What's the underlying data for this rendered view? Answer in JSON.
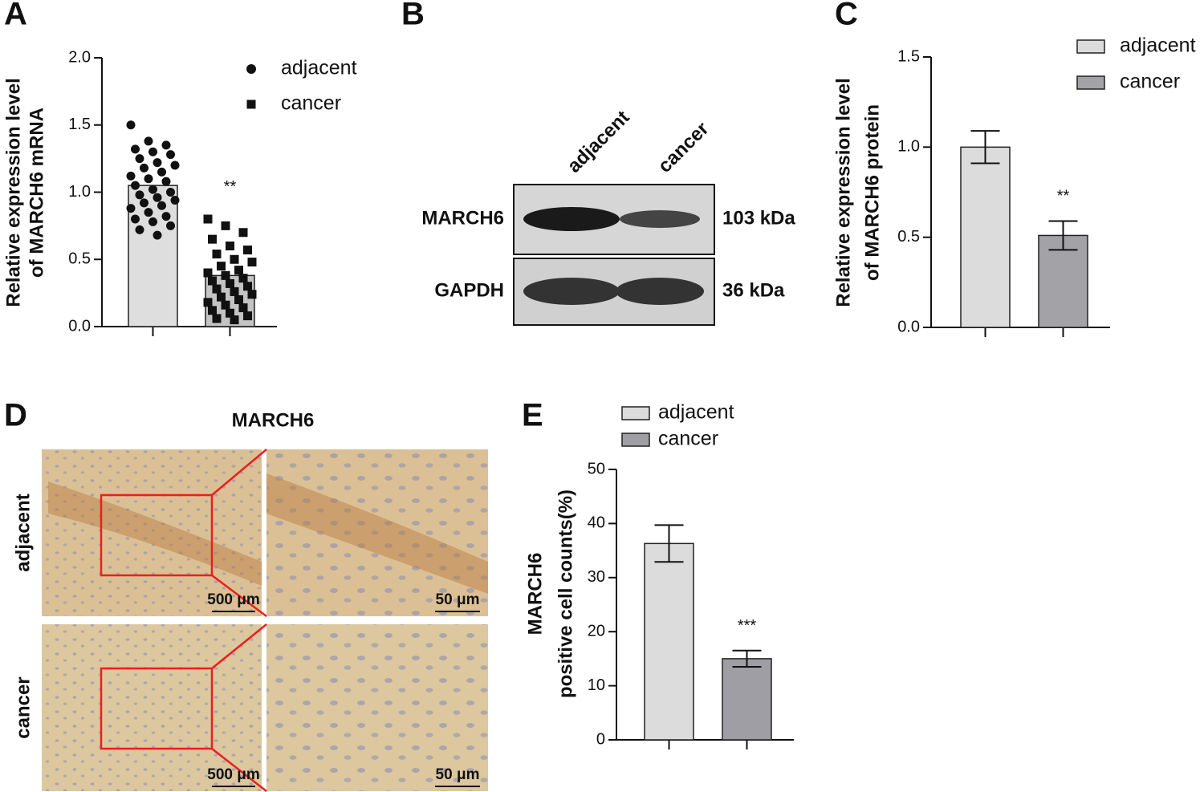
{
  "chart_data": [
    {
      "type": "bar",
      "panel": "A",
      "ylabel": [
        "Relative expression level",
        "of MARCH6 mRNA"
      ],
      "categories": [
        "adjacent",
        "cancer"
      ],
      "values": [
        1.05,
        0.38
      ],
      "colors": [
        "#dedede",
        "#c4c4c4"
      ],
      "legend_style": "symbol",
      "points": [
        [
          1.5,
          1.38,
          1.35,
          1.32,
          1.3,
          1.28,
          1.25,
          1.22,
          1.2,
          1.18,
          1.15,
          1.12,
          1.1,
          1.08,
          1.05,
          1.02,
          1.0,
          0.98,
          0.96,
          0.94,
          0.92,
          0.9,
          0.88,
          0.85,
          0.82,
          0.8,
          0.78,
          0.75,
          0.72,
          0.68
        ],
        [
          0.8,
          0.75,
          0.7,
          0.65,
          0.6,
          0.57,
          0.54,
          0.5,
          0.48,
          0.45,
          0.42,
          0.4,
          0.38,
          0.36,
          0.34,
          0.32,
          0.3,
          0.28,
          0.26,
          0.24,
          0.22,
          0.2,
          0.18,
          0.16,
          0.14,
          0.12,
          0.1,
          0.08,
          0.06,
          0.05
        ]
      ],
      "annotations": [
        {
          "category": 1,
          "text": "**"
        }
      ],
      "ylim": [
        0,
        2
      ],
      "yticks": [
        {
          "value": 0,
          "label": "0.0"
        },
        {
          "value": 0.5,
          "label": "0.5"
        },
        {
          "value": 1,
          "label": "1.0"
        },
        {
          "value": 1.5,
          "label": "1.5"
        },
        {
          "value": 2,
          "label": "2.0"
        }
      ]
    },
    {
      "type": "bar",
      "panel": "C",
      "ylabel": [
        "Relative expression level",
        "of MARCH6 protein"
      ],
      "categories": [
        "adjacent",
        "cancer"
      ],
      "values": [
        1.0,
        0.51
      ],
      "errors": [
        0.09,
        0.08
      ],
      "colors": [
        "#dcdcdc",
        "#a2a2a7"
      ],
      "legend_style": "swatch",
      "annotations": [
        {
          "category": 1,
          "text": "**"
        }
      ],
      "ylim": [
        0,
        1.5
      ],
      "yticks": [
        {
          "value": 0,
          "label": "0.0"
        },
        {
          "value": 0.5,
          "label": "0.5"
        },
        {
          "value": 1,
          "label": "1.0"
        },
        {
          "value": 1.5,
          "label": "1.5"
        }
      ]
    },
    {
      "type": "bar",
      "panel": "E",
      "ylabel": [
        "MARCH6",
        "positive cell counts(%)"
      ],
      "categories": [
        "adjacent",
        "cancer"
      ],
      "values": [
        36.3,
        15.0
      ],
      "errors": [
        3.4,
        1.5
      ],
      "colors": [
        "#dcdcdc",
        "#9e9ea4"
      ],
      "legend_style": "swatch",
      "annotations": [
        {
          "category": 1,
          "text": "***"
        }
      ],
      "ylim": [
        0,
        50
      ],
      "yticks": [
        0,
        10,
        20,
        30,
        40,
        50
      ]
    }
  ],
  "blot": {
    "panel": "B",
    "lanes": [
      "adjacent",
      "cancer"
    ],
    "rows": [
      {
        "protein": "MARCH6",
        "size": "103 kDa"
      },
      {
        "protein": "GAPDH",
        "size": "36 kDa"
      }
    ]
  },
  "ihc": {
    "panel": "D",
    "title": "MARCH6",
    "rows": [
      "adjacent",
      "cancer"
    ],
    "scale_bars": [
      "500 μm",
      "50 μm"
    ]
  }
}
